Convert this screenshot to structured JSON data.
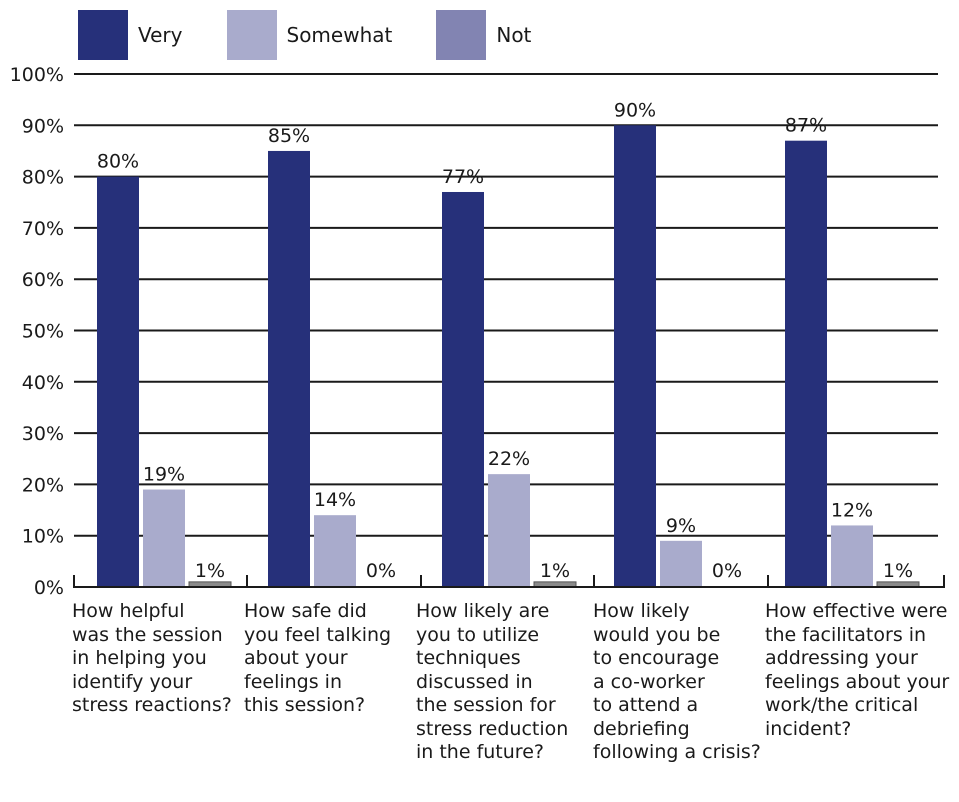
{
  "chart_data": {
    "type": "bar",
    "categories": [
      "How helpful\nwas the session\nin helping you\nidentify your\nstress reactions?",
      "How safe did\nyou feel talking\nabout your\nfeelings in\nthis session?",
      "How likely are\nyou to utilize\ntechniques\ndiscussed in\nthe session for\nstress reduction\nin the future?",
      "How likely\nwould you be\nto encourage\na co-worker\nto attend a\ndebriefing\nfollowing a crisis?",
      "How effective were\nthe facilitators in\naddressing your\nfeelings about your\nwork/the critical\nincident?"
    ],
    "series": [
      {
        "name": "Very",
        "values": [
          80,
          85,
          77,
          90,
          87
        ],
        "labels": [
          "80%",
          "85%",
          "77%",
          "90%",
          "87%"
        ]
      },
      {
        "name": "Somewhat",
        "values": [
          19,
          14,
          22,
          9,
          12
        ],
        "labels": [
          "19%",
          "14%",
          "22%",
          "9%",
          "12%"
        ]
      },
      {
        "name": "Not",
        "values": [
          1,
          0,
          1,
          0,
          1
        ],
        "labels": [
          "1%",
          "0%",
          "1%",
          "0%",
          "1%"
        ]
      }
    ],
    "yticks": [
      "0%",
      "10%",
      "20%",
      "30%",
      "40%",
      "50%",
      "60%",
      "70%",
      "80%",
      "90%",
      "100%"
    ],
    "ylim": [
      0,
      100
    ],
    "grid": true,
    "legend": "top-left"
  },
  "colors": {
    "Very": "#26307a",
    "Somewhat": "#a9abcc",
    "Not": "#8a8a8a",
    "legend_not": "#8284b2",
    "grid": "#1a1a1a"
  }
}
